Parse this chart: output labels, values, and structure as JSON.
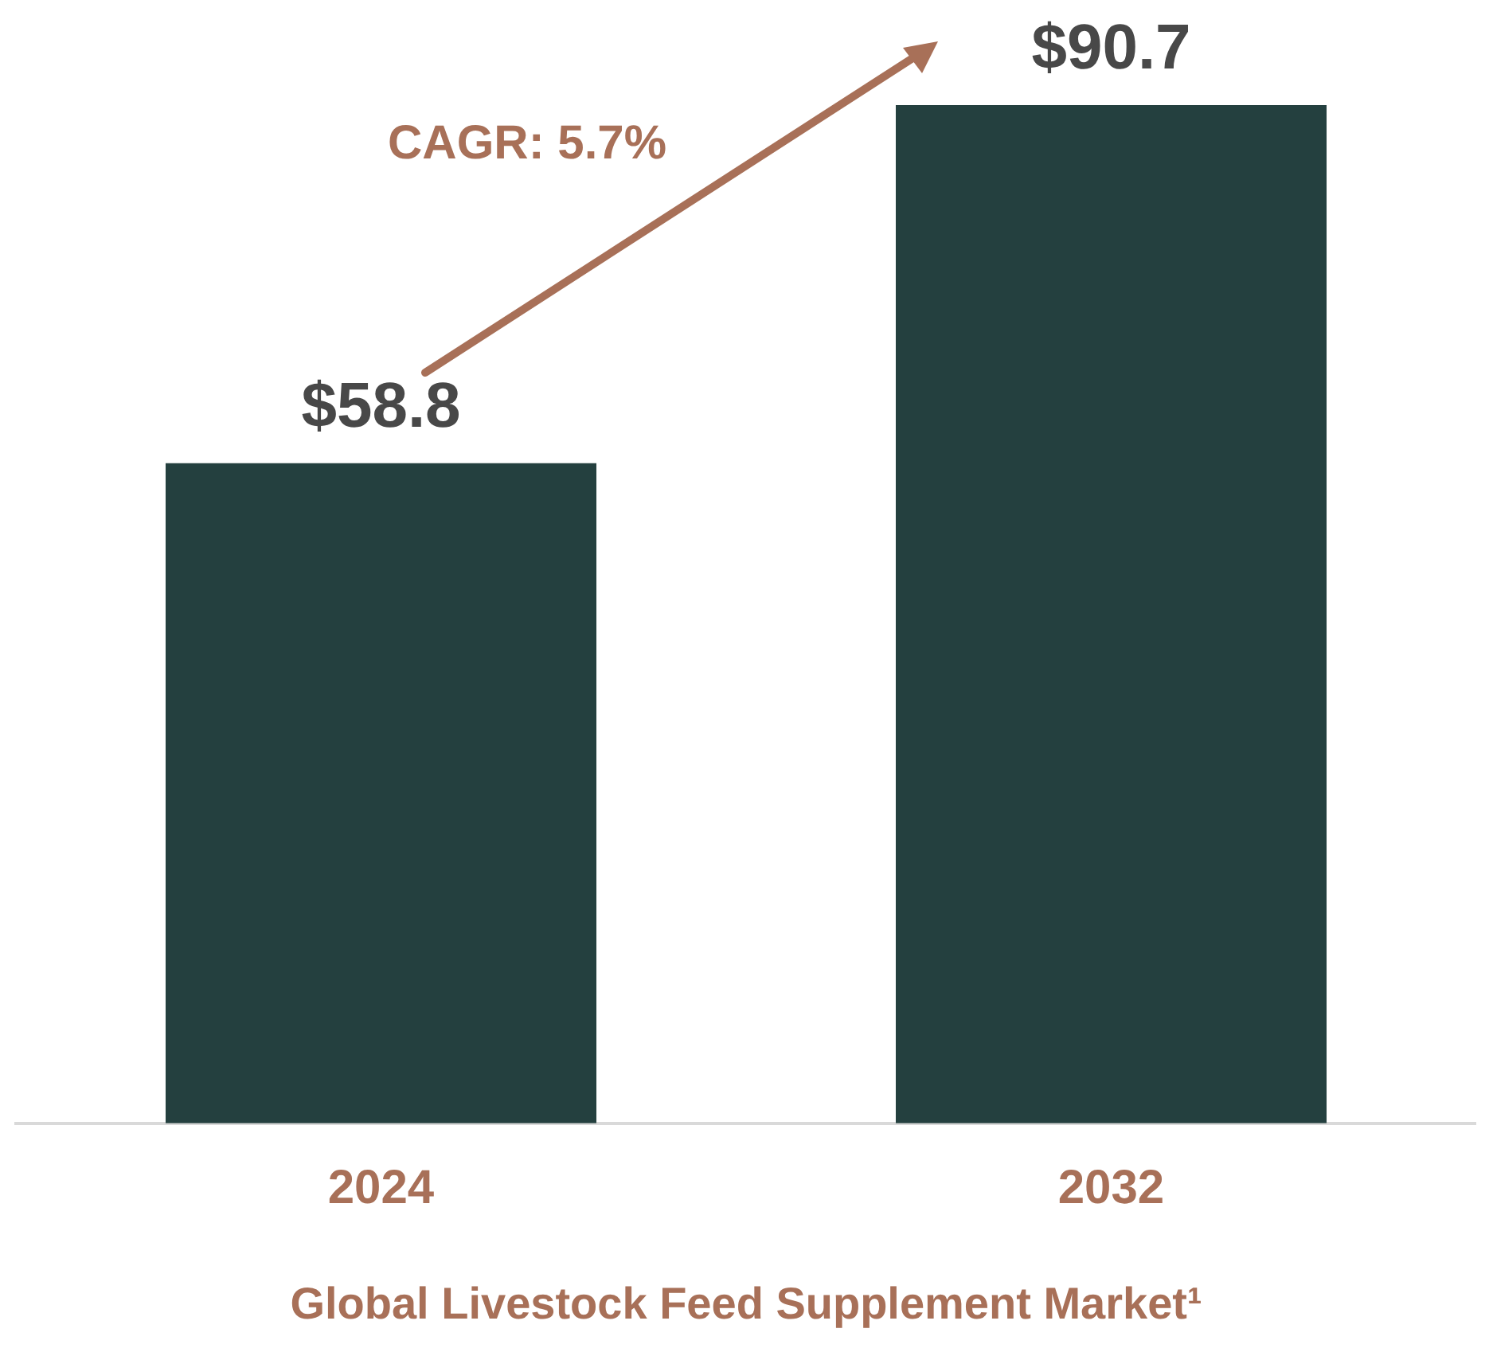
{
  "chart_data": {
    "type": "bar",
    "categories": [
      "2024",
      "2032"
    ],
    "values": [
      58.8,
      90.7
    ],
    "color": "#24403f",
    "value_labels": [
      "$58.8",
      "$90.7"
    ],
    "xlabel": "Global Livestock Feed Supplement Market¹",
    "annotations": [
      "CAGR: 5.7%"
    ],
    "grid": false,
    "legend": false
  }
}
